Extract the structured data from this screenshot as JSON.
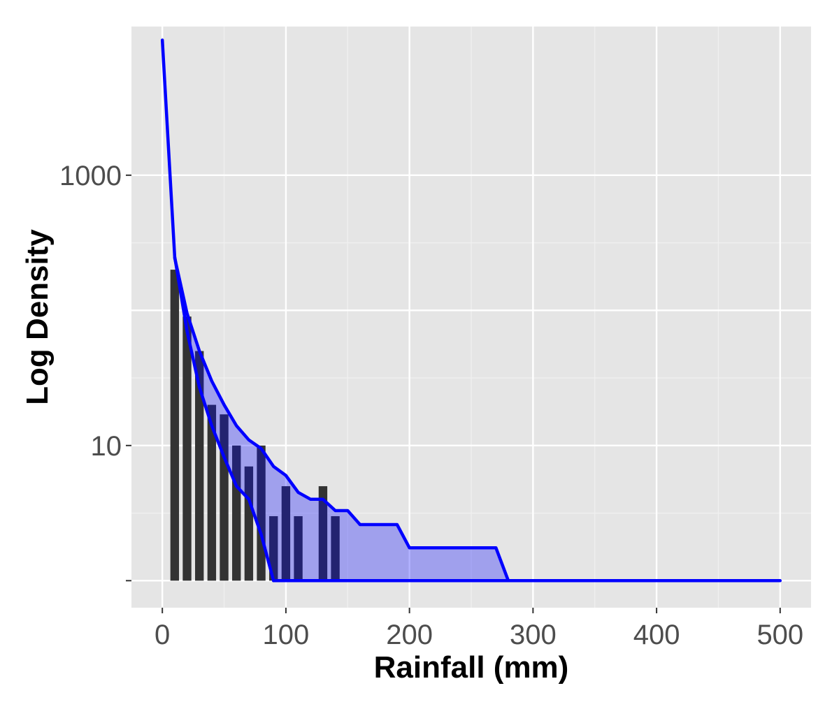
{
  "chart_data": {
    "type": "bar",
    "title": "",
    "xlabel": "Rainfall (mm)",
    "ylabel": "Log Density",
    "xlim": [
      -25,
      525
    ],
    "ylim_log10": [
      -0.2,
      4.1
    ],
    "y_scale": "log10",
    "grid": true,
    "x_ticks": [
      0,
      100,
      200,
      300,
      400,
      500
    ],
    "x_tick_labels": [
      "0",
      "100",
      "200",
      "300",
      "400",
      "500"
    ],
    "y_ticks": [
      1,
      10,
      1000
    ],
    "y_tick_labels": [
      "",
      "10",
      "1000"
    ],
    "y_major_grid": [
      1,
      10,
      100,
      1000
    ],
    "bar_width": 7,
    "bars": {
      "x": [
        10,
        20,
        30,
        40,
        50,
        60,
        70,
        80,
        90,
        100,
        110,
        130,
        140
      ],
      "values": [
        200,
        90,
        50,
        20,
        17,
        10,
        7,
        10,
        3,
        5,
        3,
        5,
        3
      ]
    },
    "envelope": {
      "upper": {
        "x": [
          10,
          20,
          30,
          40,
          50,
          60,
          70,
          80,
          90,
          100,
          110,
          120,
          130,
          140,
          150,
          160,
          190,
          200,
          270,
          280
        ],
        "values": [
          245,
          95,
          50,
          30,
          20,
          14,
          11,
          9.5,
          7,
          6,
          4.5,
          4,
          4,
          3.3,
          3.3,
          2.6,
          2.6,
          1.75,
          1.75,
          1
        ]
      },
      "lower": {
        "x": [
          0,
          10,
          20,
          30,
          40,
          50,
          60,
          70,
          80,
          90,
          280
        ],
        "values": [
          10000,
          250,
          70,
          27,
          14,
          8.2,
          5,
          4,
          2.2,
          1,
          1
        ]
      },
      "baseline": {
        "x": [
          90,
          500
        ],
        "values": [
          1,
          1
        ]
      }
    },
    "colors": {
      "panel": "#e5e5e5",
      "grid_major": "#ffffff",
      "grid_minor": "#f0f0f0",
      "bars": "#333333",
      "ribbon_fill": "#0000ff",
      "ribbon_opacity": 0.3,
      "line": "#0000ff"
    }
  }
}
